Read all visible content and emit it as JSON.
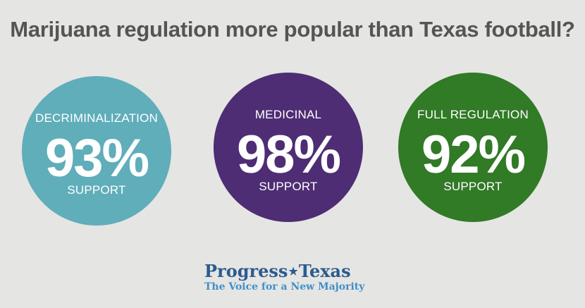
{
  "title": "Marijuana regulation more popular than Texas football?",
  "circles": [
    {
      "label": "DECRIMINALIZATION",
      "value": "93%",
      "sub": "SUPPORT",
      "color": "#5faeba"
    },
    {
      "label": "MEDICINAL",
      "value": "98%",
      "sub": "SUPPORT",
      "color": "#4e2d74"
    },
    {
      "label": "FULL REGULATION",
      "value": "92%",
      "sub": "SUPPORT",
      "color": "#317a26"
    }
  ],
  "logo": {
    "word1": "Progress",
    "star": "★",
    "word2": "Texas",
    "tagline": "The Voice for a New Majority"
  },
  "colors": {
    "background": "#e5e5e4",
    "title": "#555555",
    "brand": "#2c5b8e",
    "tagline": "#3f8fc7"
  }
}
